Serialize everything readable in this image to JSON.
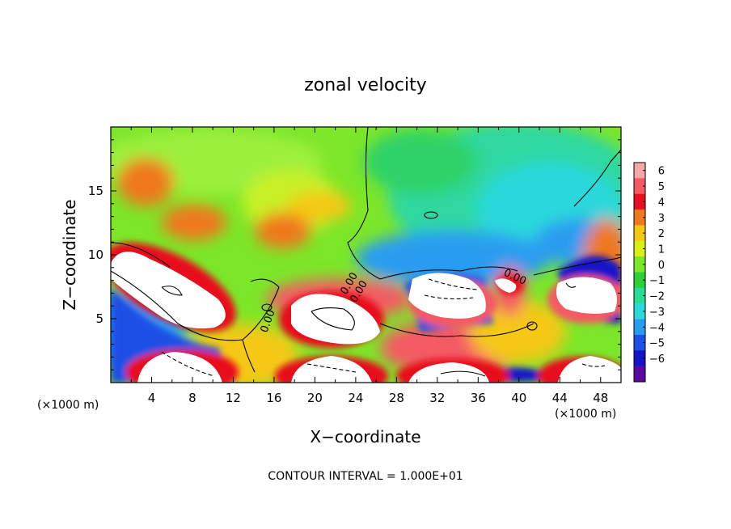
{
  "chart_data": {
    "type": "heatmap",
    "title": "zonal velocity",
    "xlabel": "X−coordinate",
    "ylabel": "Z−coordinate",
    "x_unit_left": "(×1000 m)",
    "x_unit_right": "(×1000 m)",
    "footer": "CONTOUR INTERVAL = 1.000E+01",
    "xlim": [
      0,
      50
    ],
    "ylim": [
      0,
      20
    ],
    "x_ticks": [
      4,
      8,
      12,
      16,
      20,
      24,
      28,
      32,
      36,
      40,
      44,
      48
    ],
    "y_ticks": [
      5,
      10,
      15
    ],
    "contour_labels": [
      "0.00",
      "0.00",
      "0.00",
      "0.00"
    ],
    "colorbar": {
      "ticks": [
        "6",
        "5",
        "4",
        "3",
        "2",
        "1",
        "0",
        "−1",
        "−2",
        "−3",
        "−4",
        "−5",
        "−6"
      ],
      "colors": [
        "#f4a8a8",
        "#f45a64",
        "#e8101e",
        "#f0781e",
        "#f5c814",
        "#d8f014",
        "#7ce628",
        "#2ed238",
        "#28dc96",
        "#2cd8dc",
        "#2a9cf0",
        "#1e50e6",
        "#1414c8",
        "#5a0aa0"
      ]
    }
  }
}
